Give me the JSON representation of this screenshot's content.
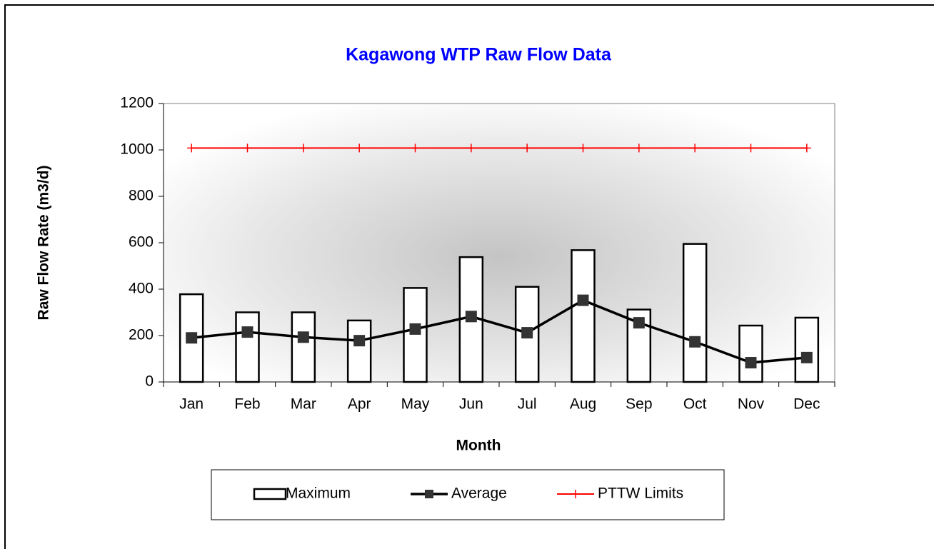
{
  "chart_data": {
    "type": "bar",
    "title": "Kagawong WTP Raw Flow Data",
    "x_label": "Month",
    "y_label": "Raw Flow Rate (m3/d)",
    "categories": [
      "Jan",
      "Feb",
      "Mar",
      "Apr",
      "May",
      "Jun",
      "Jul",
      "Aug",
      "Sep",
      "Oct",
      "Nov",
      "Dec"
    ],
    "series": [
      {
        "name": "Maximum",
        "type": "bar",
        "color": "#ffffff",
        "values": [
          378,
          300,
          300,
          265,
          405,
          538,
          410,
          568,
          312,
          595,
          243,
          277
        ]
      },
      {
        "name": "Average",
        "type": "line",
        "marker": "square",
        "color": "#000000",
        "values": [
          190,
          215,
          193,
          178,
          228,
          282,
          212,
          352,
          255,
          173,
          83,
          105
        ]
      },
      {
        "name": "PTTW Limits",
        "type": "line",
        "marker": "plus",
        "color": "#ff0000",
        "values": [
          1008,
          1008,
          1008,
          1008,
          1008,
          1008,
          1008,
          1008,
          1008,
          1008,
          1008,
          1008
        ]
      }
    ],
    "ylim": [
      0,
      1200
    ],
    "yticks": [
      0,
      200,
      400,
      600,
      800,
      1000,
      1200
    ],
    "legend": "bottom"
  }
}
